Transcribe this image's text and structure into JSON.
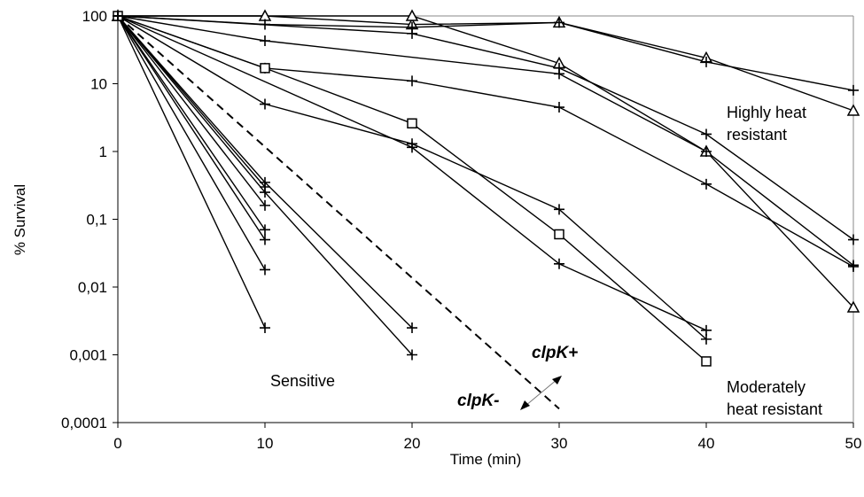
{
  "chart_data": {
    "type": "line",
    "title": "",
    "xlabel": "Time (min)",
    "ylabel": "% Survival",
    "xlim": [
      0,
      50
    ],
    "ylim": [
      0.0001,
      100
    ],
    "yscale": "log",
    "xticks": [
      "0",
      "10",
      "20",
      "30",
      "40",
      "50"
    ],
    "yticks": [
      "0,0001",
      "0,001",
      "0,01",
      "0,1",
      "1",
      "10",
      "100"
    ],
    "grid": false,
    "legend": "none",
    "annotations": {
      "highly_line1": "Highly heat",
      "highly_line2": "resistant",
      "moderately_line1": "Moderately",
      "moderately_line2": "heat resistant",
      "sensitive": "Sensitive",
      "clpk_plus": "clpK+",
      "clpk_minus": "clpK-"
    },
    "series": [
      {
        "marker": "triangle",
        "points": [
          [
            0,
            100
          ],
          [
            10,
            100
          ],
          [
            20,
            75
          ],
          [
            30,
            80
          ],
          [
            40,
            24
          ],
          [
            50,
            4
          ]
        ]
      },
      {
        "marker": "triangle",
        "points": [
          [
            0,
            100
          ],
          [
            20,
            100
          ],
          [
            30,
            20
          ],
          [
            40,
            1
          ],
          [
            50,
            0.005
          ]
        ]
      },
      {
        "marker": "plus",
        "points": [
          [
            0,
            100
          ],
          [
            10,
            75
          ],
          [
            20,
            68
          ],
          [
            30,
            80
          ],
          [
            40,
            21
          ],
          [
            50,
            8
          ]
        ]
      },
      {
        "marker": "plus",
        "points": [
          [
            0,
            100
          ],
          [
            20,
            55
          ],
          [
            30,
            17
          ],
          [
            40,
            1.8
          ],
          [
            50,
            0.05
          ]
        ]
      },
      {
        "marker": "plus",
        "points": [
          [
            0,
            100
          ],
          [
            10,
            17
          ],
          [
            20,
            11
          ],
          [
            30,
            4.5
          ],
          [
            40,
            0.33
          ],
          [
            50,
            0.02
          ]
        ]
      },
      {
        "marker": "plus",
        "points": [
          [
            0,
            100
          ],
          [
            10,
            43
          ],
          [
            30,
            14
          ],
          [
            40,
            1
          ],
          [
            50,
            0.021
          ]
        ]
      },
      {
        "marker": "square",
        "points": [
          [
            0,
            100
          ],
          [
            10,
            17
          ],
          [
            20,
            2.6
          ],
          [
            30,
            0.06
          ],
          [
            40,
            0.0008
          ]
        ]
      },
      {
        "marker": "plus",
        "points": [
          [
            0,
            100
          ],
          [
            10,
            5
          ],
          [
            20,
            1.3
          ],
          [
            30,
            0.14
          ],
          [
            40,
            0.0017
          ]
        ]
      },
      {
        "marker": "plus",
        "points": [
          [
            0,
            100
          ],
          [
            20,
            1.15
          ],
          [
            30,
            0.022
          ],
          [
            40,
            0.0023
          ]
        ]
      },
      {
        "marker": "plus",
        "points": [
          [
            0,
            100
          ],
          [
            10,
            0.35
          ],
          [
            20,
            0.0025
          ]
        ]
      },
      {
        "marker": "plus",
        "points": [
          [
            0,
            100
          ],
          [
            10,
            0.25
          ],
          [
            20,
            0.001
          ]
        ]
      },
      {
        "marker": "plus",
        "points": [
          [
            0,
            100
          ],
          [
            10,
            0.16
          ]
        ]
      },
      {
        "marker": "plus",
        "points": [
          [
            0,
            100
          ],
          [
            10,
            0.07
          ]
        ]
      },
      {
        "marker": "plus",
        "points": [
          [
            0,
            100
          ],
          [
            10,
            0.05
          ]
        ]
      },
      {
        "marker": "plus",
        "points": [
          [
            0,
            100
          ],
          [
            10,
            0.018
          ]
        ]
      },
      {
        "marker": "plus",
        "points": [
          [
            0,
            100
          ],
          [
            10,
            0.0025
          ]
        ]
      },
      {
        "marker": "plus",
        "points": [
          [
            0,
            100
          ],
          [
            10,
            0.3
          ]
        ]
      },
      {
        "marker": "none",
        "dashed": true,
        "points": [
          [
            0,
            100
          ],
          [
            30,
            0.00016
          ]
        ]
      }
    ]
  }
}
